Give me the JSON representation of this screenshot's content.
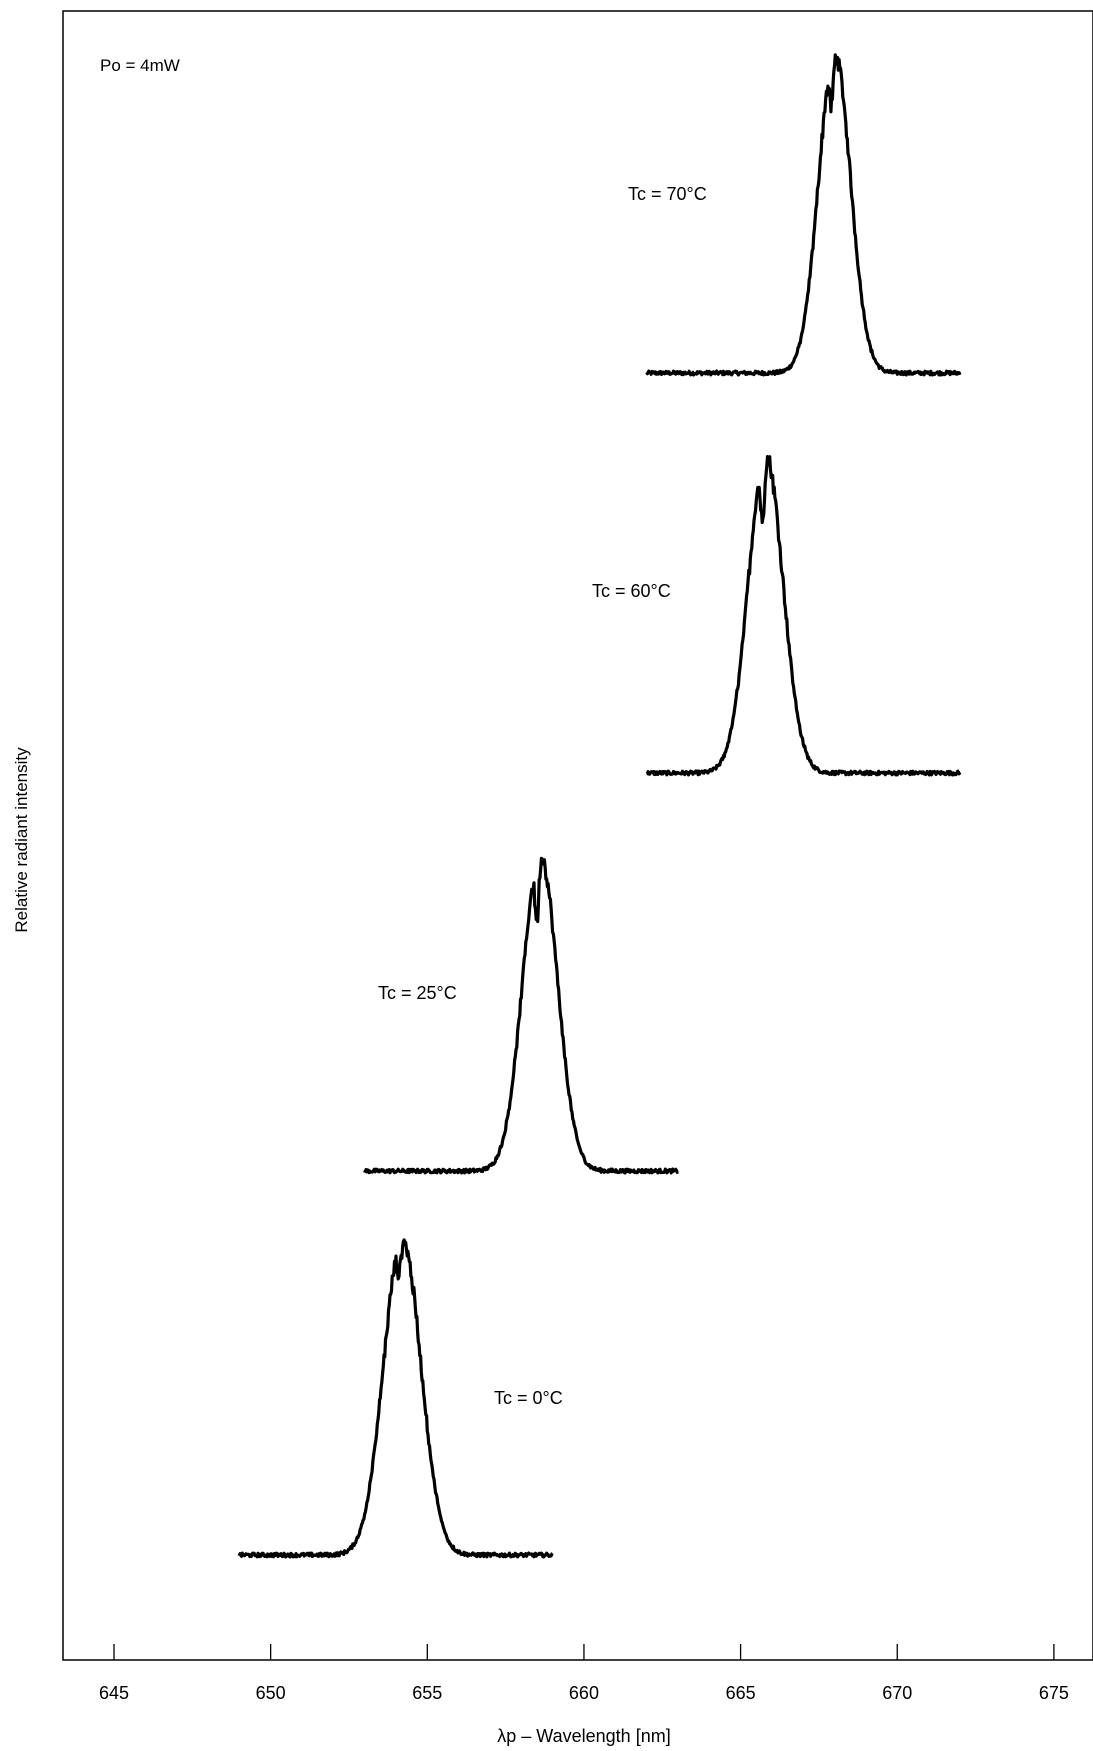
{
  "chart_data": {
    "type": "line",
    "title": "",
    "xlabel": "λp – Wavelength [nm]",
    "ylabel": "Relative radiant intensity",
    "xlim": [
      643.4,
      675.7
    ],
    "xticks": [
      645,
      650,
      655,
      660,
      665,
      670,
      675
    ],
    "grid": false,
    "annotations": [
      {
        "text": "Po = 4mW"
      },
      {
        "text": "Tc = 70°C"
      },
      {
        "text": "Tc = 60°C"
      },
      {
        "text": "Tc = 25°C"
      },
      {
        "text": "Tc = 0°C"
      }
    ],
    "series": [
      {
        "name": "Tc = 70°C",
        "x_range": [
          662,
          672
        ],
        "peak_wavelength": 668.0,
        "fwhm": 1.2,
        "dip": 0.15,
        "relative_height": 1.0
      },
      {
        "name": "Tc = 60°C",
        "x_range": [
          662,
          672
        ],
        "peak_wavelength": 665.8,
        "fwhm": 1.3,
        "dip": 0.2,
        "relative_height": 1.0
      },
      {
        "name": "Tc = 25°C",
        "x_range": [
          653,
          663
        ],
        "peak_wavelength": 658.6,
        "fwhm": 1.3,
        "dip": 0.2,
        "relative_height": 1.0
      },
      {
        "name": "Tc = 0°C",
        "x_range": [
          649,
          659
        ],
        "peak_wavelength": 654.2,
        "fwhm": 1.4,
        "dip": 0.1,
        "relative_height": 1.0
      }
    ]
  }
}
